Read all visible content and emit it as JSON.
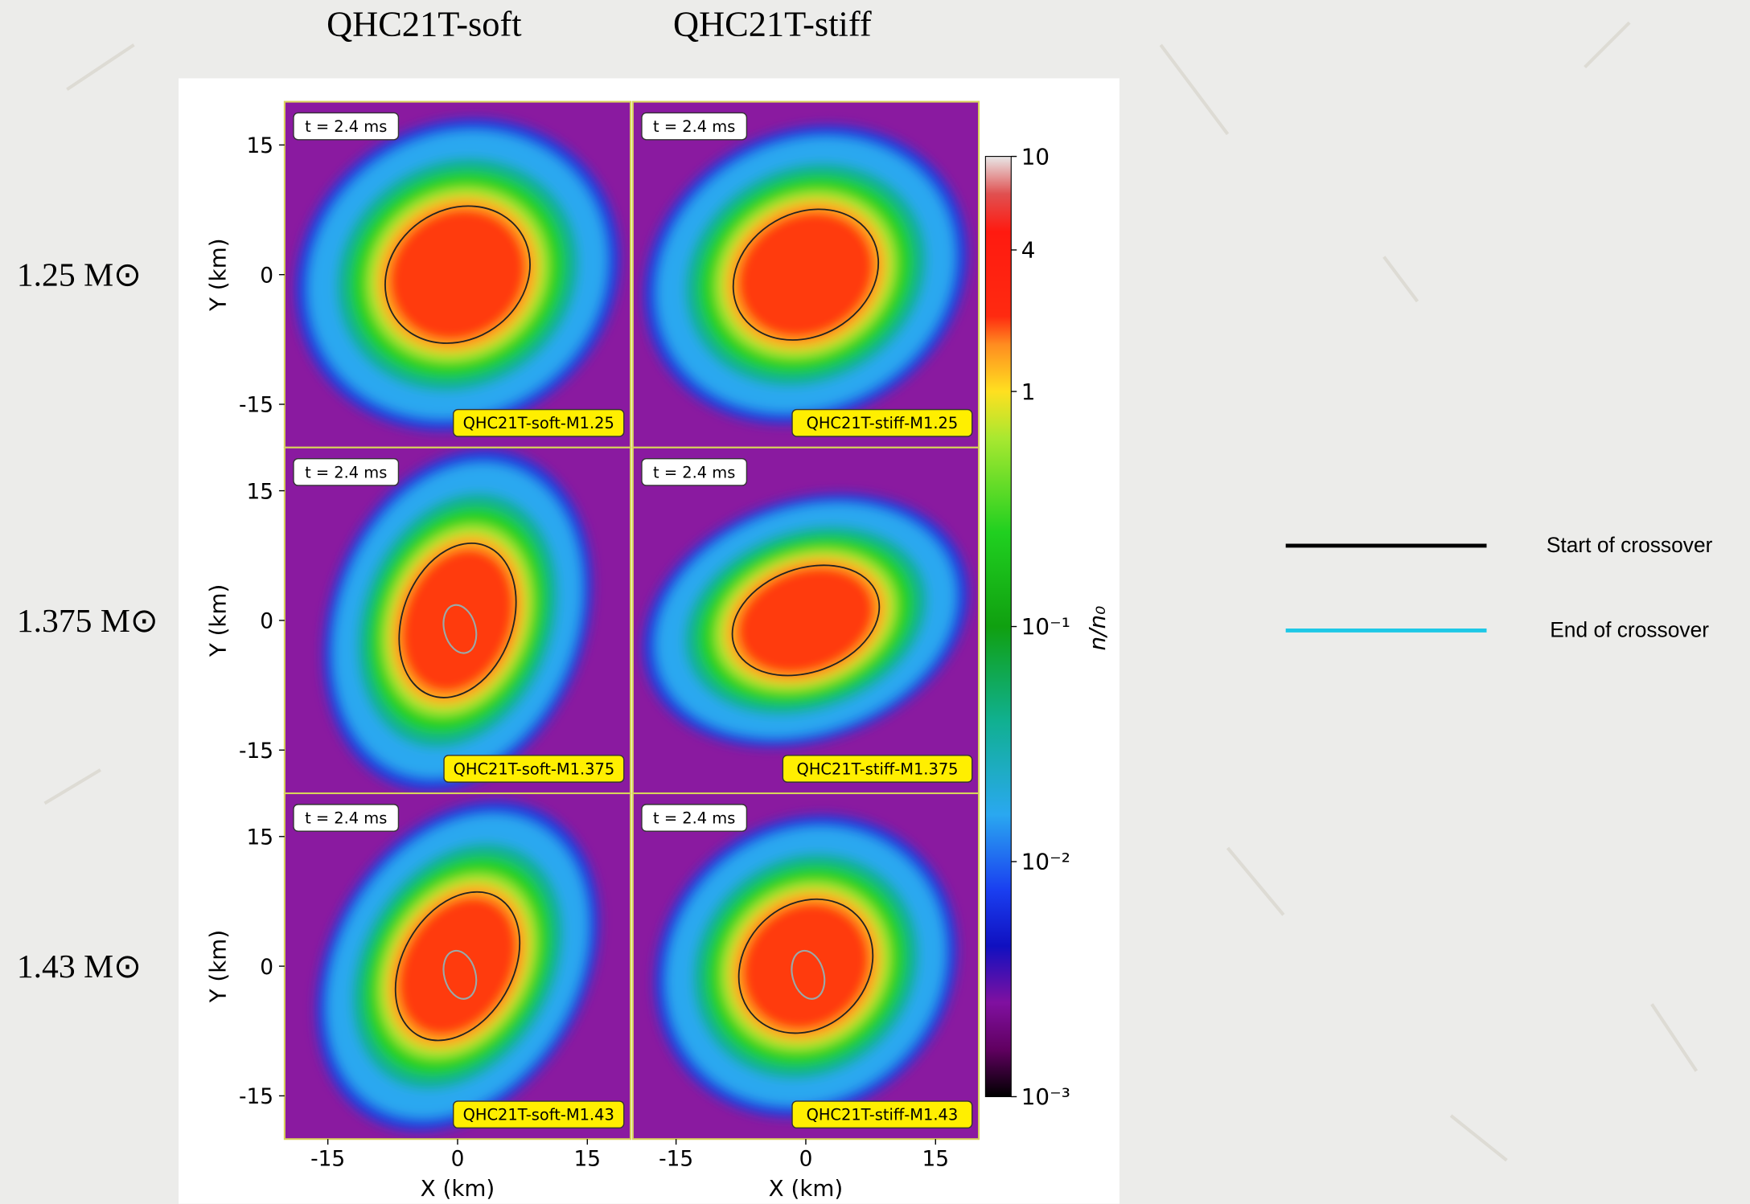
{
  "column_titles": [
    "QHC21T-soft",
    "QHC21T-stiff"
  ],
  "row_labels": [
    "1.25 M⊙",
    "1.375 M⊙",
    "1.43 M⊙"
  ],
  "panels": [
    {
      "time": "t = 2.4 ms",
      "label": "QHC21T-soft-M1.25"
    },
    {
      "time": "t = 2.4 ms",
      "label": "QHC21T-stiff-M1.25"
    },
    {
      "time": "t = 2.4 ms",
      "label": "QHC21T-soft-M1.375"
    },
    {
      "time": "t = 2.4 ms",
      "label": "QHC21T-stiff-M1.375"
    },
    {
      "time": "t = 2.4 ms",
      "label": "QHC21T-soft-M1.43"
    },
    {
      "time": "t = 2.4 ms",
      "label": "QHC21T-stiff-M1.43"
    }
  ],
  "x_axis": {
    "label": "X (km)",
    "lim": [
      -20,
      20
    ],
    "ticks": [
      -15,
      0,
      15
    ]
  },
  "y_axis": {
    "label": "Y (km)",
    "lim": [
      -20,
      20
    ],
    "ticks": [
      15,
      0,
      -15
    ]
  },
  "colorbar": {
    "label": "n/n₀",
    "scale": "log",
    "range": [
      0.001,
      10
    ],
    "ticks": [
      {
        "value": 10,
        "label": "10"
      },
      {
        "value": 4,
        "label": "4"
      },
      {
        "value": 1,
        "label": "1"
      },
      {
        "value": 0.1,
        "label": "10⁻¹"
      },
      {
        "value": 0.01,
        "label": "10⁻²"
      },
      {
        "value": 0.001,
        "label": "10⁻³"
      }
    ]
  },
  "legend": [
    {
      "label": "Start of crossover",
      "color": "#000000"
    },
    {
      "label": "End of crossover",
      "color": "#1ec8e6"
    }
  ]
}
